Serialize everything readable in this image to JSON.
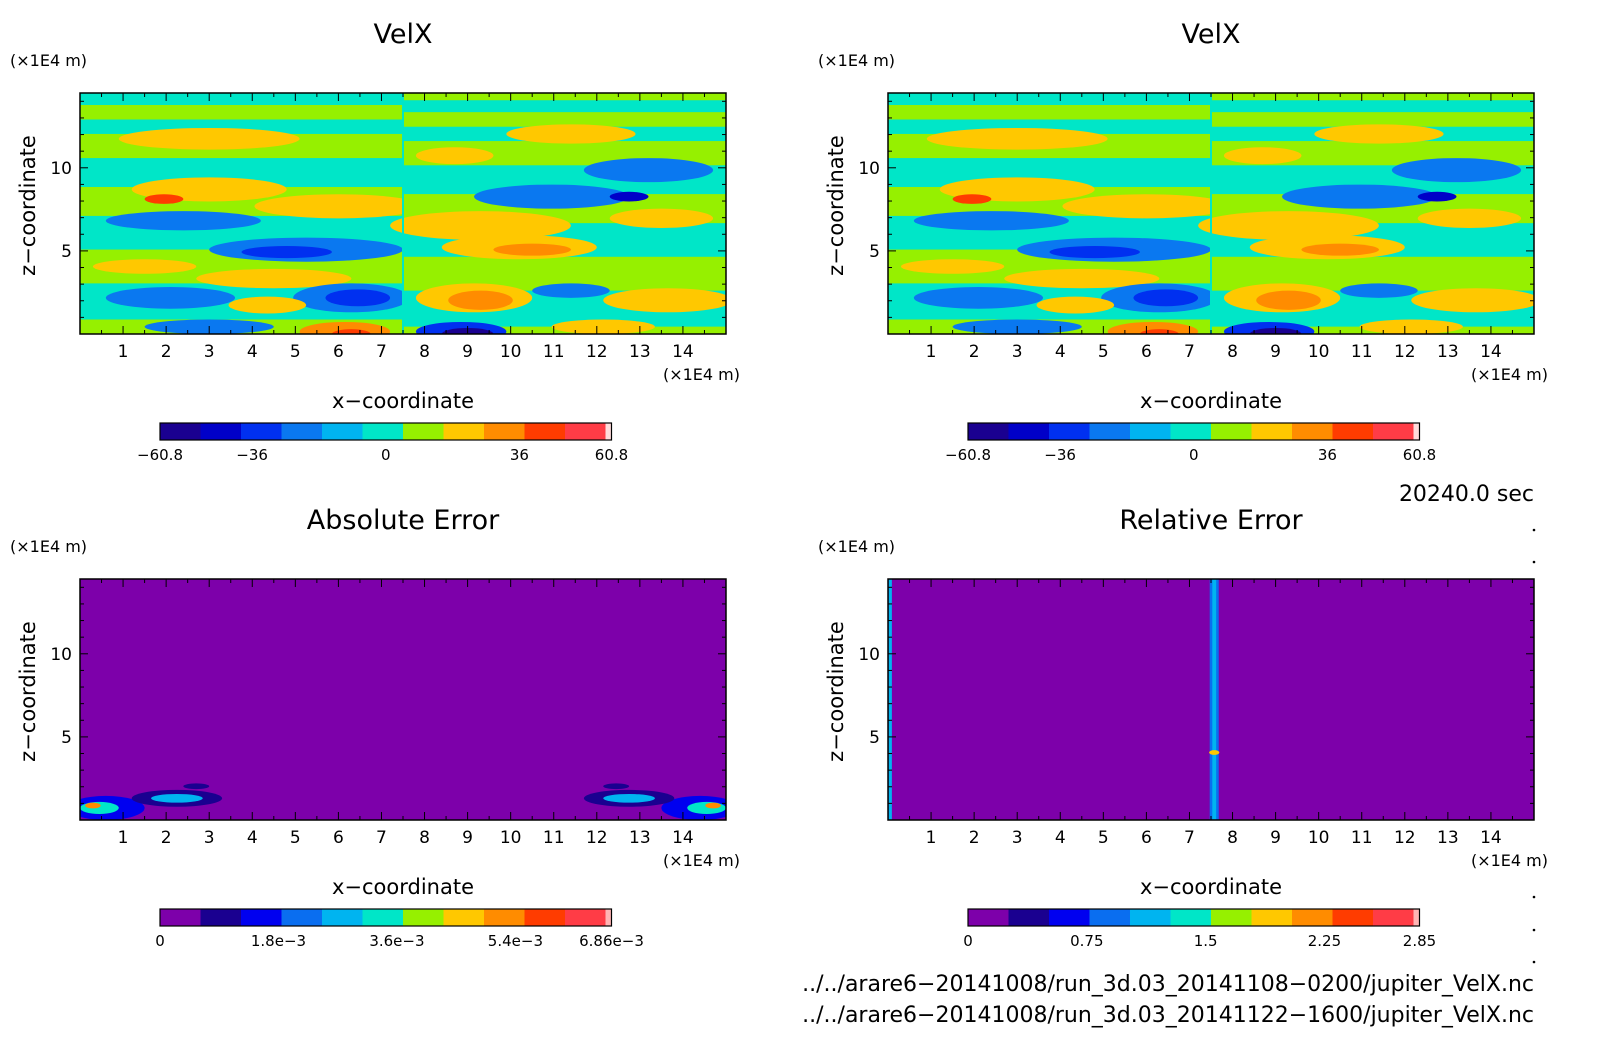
{
  "chart_data": [
    {
      "type": "heatmap",
      "title": "VelX",
      "xlabel": "x−coordinate",
      "ylabel": "z−coordinate",
      "x_unit": "(×1E4 m)",
      "y_unit": "(×1E4 m)",
      "xlim": [
        0,
        15
      ],
      "ylim": [
        0,
        14.5
      ],
      "x_ticks": [
        "1",
        "2",
        "3",
        "4",
        "5",
        "6",
        "7",
        "8",
        "9",
        "10",
        "11",
        "12",
        "13",
        "14"
      ],
      "y_ticks": [
        "5",
        "10"
      ],
      "colorbar": {
        "min": -60.8,
        "max": 60.8,
        "tick_labels": [
          "−60.8",
          "−36",
          "0",
          "36",
          "60.8"
        ],
        "tick_values": [
          -60.8,
          -36,
          0,
          36,
          60.8
        ]
      }
    },
    {
      "type": "heatmap",
      "title": "VelX",
      "xlabel": "x−coordinate",
      "ylabel": "z−coordinate",
      "x_unit": "(×1E4 m)",
      "y_unit": "(×1E4 m)",
      "xlim": [
        0,
        15
      ],
      "ylim": [
        0,
        14.5
      ],
      "x_ticks": [
        "1",
        "2",
        "3",
        "4",
        "5",
        "6",
        "7",
        "8",
        "9",
        "10",
        "11",
        "12",
        "13",
        "14"
      ],
      "y_ticks": [
        "5",
        "10"
      ],
      "colorbar": {
        "min": -60.8,
        "max": 60.8,
        "tick_labels": [
          "−60.8",
          "−36",
          "0",
          "36",
          "60.8"
        ],
        "tick_values": [
          -60.8,
          -36,
          0,
          36,
          60.8
        ]
      }
    },
    {
      "type": "heatmap",
      "title": "Absolute Error",
      "xlabel": "x−coordinate",
      "ylabel": "z−coordinate",
      "x_unit": "(×1E4 m)",
      "y_unit": "(×1E4 m)",
      "xlim": [
        0,
        15
      ],
      "ylim": [
        0,
        14.5
      ],
      "x_ticks": [
        "1",
        "2",
        "3",
        "4",
        "5",
        "6",
        "7",
        "8",
        "9",
        "10",
        "11",
        "12",
        "13",
        "14"
      ],
      "y_ticks": [
        "5",
        "10"
      ],
      "colorbar": {
        "min": 0,
        "max": 0.00686,
        "tick_labels": [
          "0",
          "1.8e−3",
          "3.6e−3",
          "5.4e−3",
          "6.86e−3"
        ],
        "tick_values": [
          0,
          0.0018,
          0.0036,
          0.0054,
          0.00686
        ]
      }
    },
    {
      "type": "heatmap",
      "title": "Relative Error",
      "xlabel": "x−coordinate",
      "ylabel": "z−coordinate",
      "x_unit": "(×1E4 m)",
      "y_unit": "(×1E4 m)",
      "xlim": [
        0,
        15
      ],
      "ylim": [
        0,
        14.5
      ],
      "x_ticks": [
        "1",
        "2",
        "3",
        "4",
        "5",
        "6",
        "7",
        "8",
        "9",
        "10",
        "11",
        "12",
        "13",
        "14"
      ],
      "y_ticks": [
        "5",
        "10"
      ],
      "colorbar": {
        "min": 0,
        "max": 2.85,
        "tick_labels": [
          "0",
          "0.75",
          "1.5",
          "2.25",
          "2.85"
        ],
        "tick_values": [
          0,
          0.75,
          1.5,
          2.25,
          2.85
        ]
      }
    }
  ],
  "colors": {
    "velx_scale": [
      "#1a0090",
      "#0000c8",
      "#0030f0",
      "#0a78f0",
      "#00b4f0",
      "#00e6c8",
      "#96f000",
      "#ffc800",
      "#ff8c00",
      "#ff3c00",
      "#ff3c46",
      "#ffdcdc"
    ],
    "error_scale": [
      "#7d00aa",
      "#1a0090",
      "#0000f0",
      "#0a6ef0",
      "#00b4f0",
      "#00e6c8",
      "#96f000",
      "#ffc800",
      "#ff8c00",
      "#ff3c00",
      "#ff3c46",
      "#ffb4b4"
    ],
    "background_purple": "#7d00aa",
    "cyan": "#00e6c8",
    "green": "#96f000"
  },
  "info": {
    "time": "20240.0 sec",
    "file1": "../../arare6−20141008/run_3d.03_20141108−0200/jupiter_VelX.nc",
    "file2": "../../arare6−20141008/run_3d.03_20141122−1600/jupiter_VelX.nc"
  }
}
